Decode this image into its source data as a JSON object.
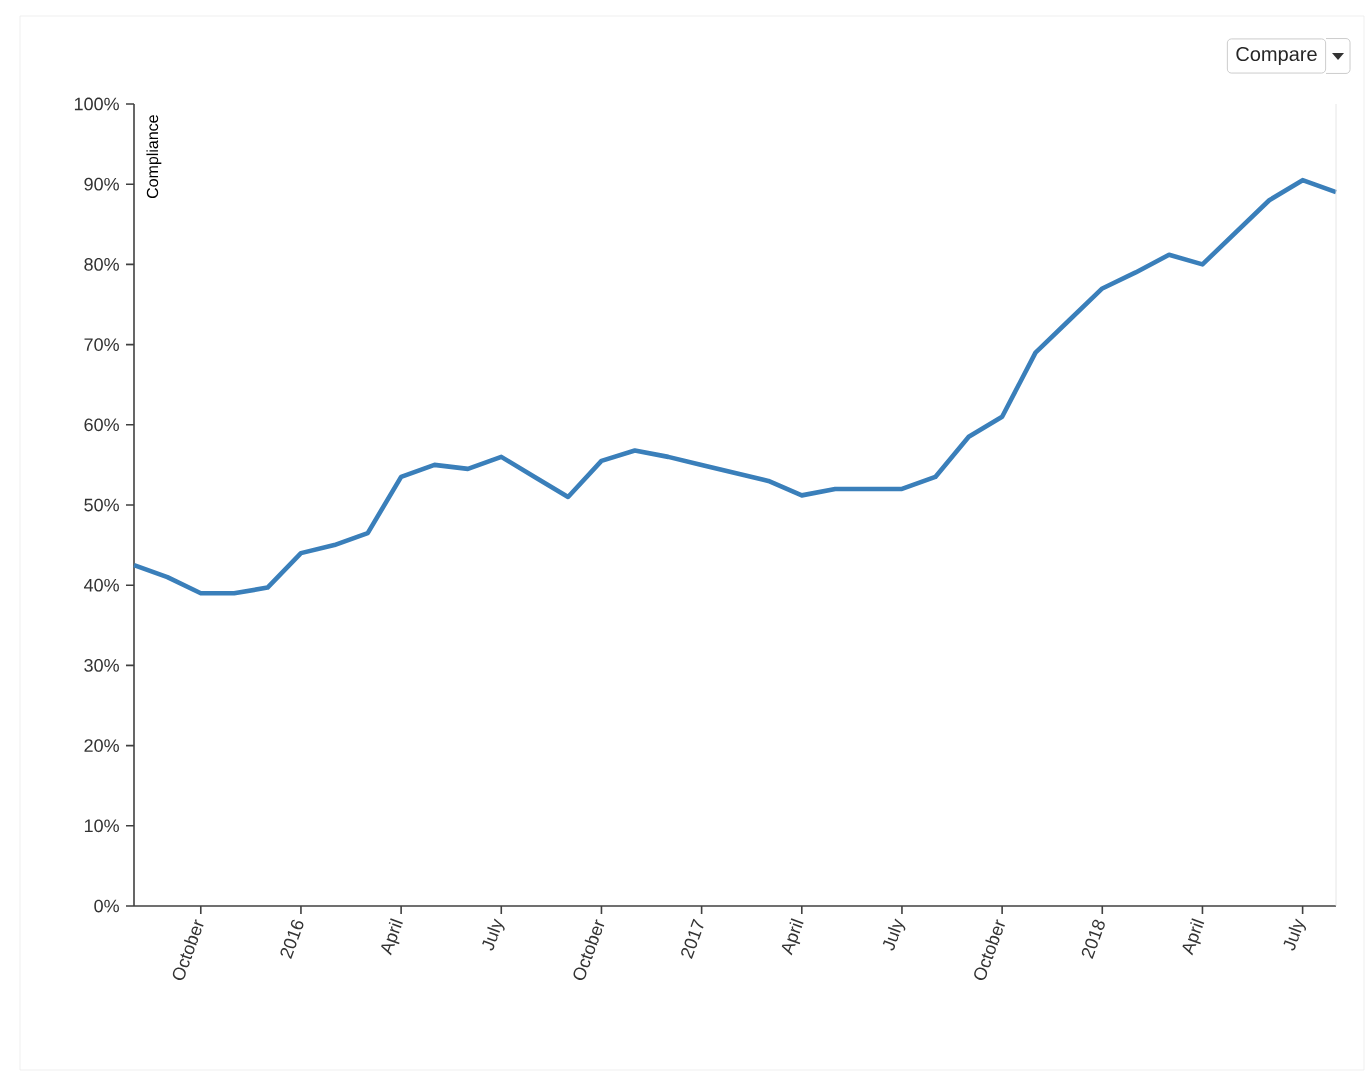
{
  "chart_data": {
    "type": "line",
    "ylabel": "Compliance",
    "annotations": [
      "Compare"
    ],
    "x": [
      "2015-08",
      "2015-09",
      "2015-10",
      "2015-11",
      "2015-12",
      "2016-01",
      "2016-02",
      "2016-03",
      "2016-04",
      "2016-05",
      "2016-06",
      "2016-07",
      "2016-08",
      "2016-09",
      "2016-10",
      "2016-11",
      "2016-12",
      "2017-01",
      "2017-02",
      "2017-03",
      "2017-04",
      "2017-05",
      "2017-06",
      "2017-07",
      "2017-08",
      "2017-09",
      "2017-10",
      "2017-11",
      "2017-12",
      "2018-01",
      "2018-02",
      "2018-03",
      "2018-04",
      "2018-05",
      "2018-06",
      "2018-07",
      "2018-08"
    ],
    "series": [
      {
        "color": "#3a7fba",
        "values": [
          42.5,
          41,
          39,
          39,
          39.7,
          44,
          45,
          46.5,
          53.5,
          55,
          54.5,
          56,
          53.5,
          51,
          55.5,
          56.8,
          56,
          55,
          54,
          53,
          51.2,
          52,
          52,
          52,
          53.5,
          58.5,
          61,
          69,
          73,
          77,
          79,
          81.2,
          80,
          84,
          88,
          90.5,
          89
        ]
      }
    ],
    "xlim": [
      "2015-08",
      "2018-08"
    ],
    "xticks": [
      {
        "value": "2015-10",
        "label": "October"
      },
      {
        "value": "2016-01",
        "label": "2016"
      },
      {
        "value": "2016-04",
        "label": "April"
      },
      {
        "value": "2016-07",
        "label": "July"
      },
      {
        "value": "2016-10",
        "label": "October"
      },
      {
        "value": "2017-01",
        "label": "2017"
      },
      {
        "value": "2017-04",
        "label": "April"
      },
      {
        "value": "2017-07",
        "label": "July"
      },
      {
        "value": "2017-10",
        "label": "October"
      },
      {
        "value": "2018-01",
        "label": "2018"
      },
      {
        "value": "2018-04",
        "label": "April"
      },
      {
        "value": "2018-07",
        "label": "July"
      }
    ],
    "ylim": [
      0,
      100
    ],
    "yticks": [
      {
        "value": 0,
        "label": "0%"
      },
      {
        "value": 10,
        "label": "10%"
      },
      {
        "value": 20,
        "label": "20%"
      },
      {
        "value": 30,
        "label": "30%"
      },
      {
        "value": 40,
        "label": "40%"
      },
      {
        "value": 50,
        "label": "50%"
      },
      {
        "value": 60,
        "label": "60%"
      },
      {
        "value": 70,
        "label": "70%"
      },
      {
        "value": 80,
        "label": "80%"
      },
      {
        "value": 90,
        "label": "90%"
      },
      {
        "value": 100,
        "label": "100%"
      }
    ],
    "grid": false
  }
}
